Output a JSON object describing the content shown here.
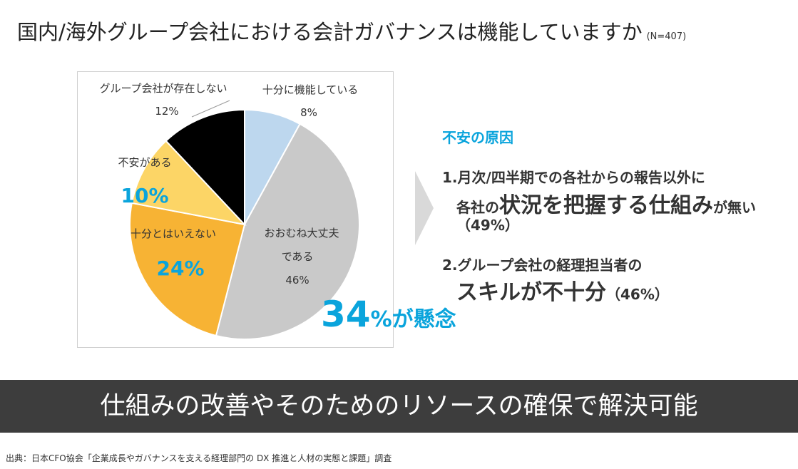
{
  "header": {
    "title": "国内/海外グループ会社における会計ガバナンスは機能していますか",
    "sample": "(N=407)"
  },
  "chart_data": {
    "type": "pie",
    "start_angle_deg": 0,
    "direction": "clockwise",
    "slices": [
      {
        "label": "十分に機能している",
        "value": 8,
        "display": "8%",
        "color": "#bdd7ee"
      },
      {
        "label": "おおむね大丈夫である",
        "value": 46,
        "display": "46%",
        "color": "#c9c9c9"
      },
      {
        "label": "十分とはいえない",
        "value": 24,
        "display": "24%",
        "color": "#f7b334"
      },
      {
        "label": "不安がある",
        "value": 10,
        "display": "10%",
        "color": "#fcd566"
      },
      {
        "label": "グループ会社が存在しない",
        "value": 12,
        "display": "12%",
        "color": "#000000"
      }
    ],
    "label_lines": {
      "s0_name": "十分に機能している",
      "s0_pct": "8%",
      "s1_line1": "おおむね大丈夫",
      "s1_line2": "である",
      "s1_pct": "46%",
      "s2_name": "十分とはいえない",
      "s2_pct": "24%",
      "s3_name": "不安がある",
      "s3_pct": "10%",
      "s4_name": "グループ会社が存在しない",
      "s4_pct": "12%"
    }
  },
  "concern": {
    "number": "34",
    "text": "%が懸念"
  },
  "causes": {
    "title": "不安の原因",
    "item1_line1": "1.月次/四半期での各社からの報告以外に",
    "item1_line2_pre": "各社の",
    "item1_line2_big": "状況を把握する仕組み",
    "item1_line2_post": "が無い",
    "item1_pct": "（49%）",
    "item2_line1": "2.グループ会社の経理担当者の",
    "item2_big": "スキルが不十分",
    "item2_pct": "（46%）"
  },
  "banner": {
    "text": "仕組みの改善やそのためのリソースの確保で解決可能"
  },
  "footer": {
    "source": "出典：日本CFO協会「企業成長やガバナンスを支える経理部門の DX 推進と人材の実態と課題」調査"
  }
}
